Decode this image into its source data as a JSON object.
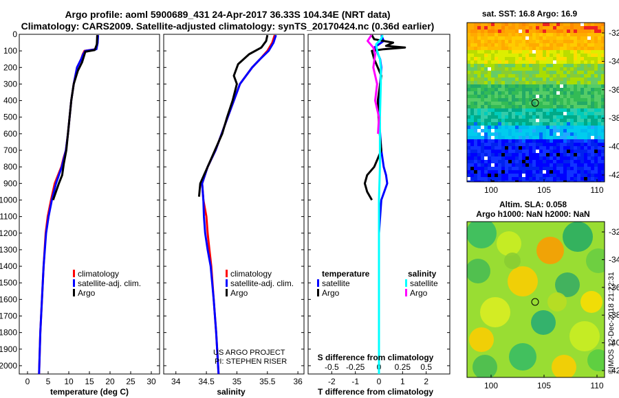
{
  "header": {
    "title_line1": "Argo profile: aoml 5900689_431 24-Apr-2017 36.33S 104.34E (NRT data)",
    "title_line2": "Climatology: CARS2009. Satellite-adjusted climatology: synTS_20170424.nc (0.36d earlier)"
  },
  "colors": {
    "climatology": "#ff0000",
    "satellite_adj": "#0000ff",
    "argo": "#000000",
    "s_satellite": "#00ffff",
    "s_argo": "#ff00ff"
  },
  "depth_axis": {
    "range": [
      0,
      2050
    ],
    "ticks": [
      "0",
      "100",
      "200",
      "300",
      "400",
      "500",
      "600",
      "700",
      "800",
      "900",
      "1000",
      "1100",
      "1200",
      "1300",
      "1400",
      "1500",
      "1600",
      "1700",
      "1800",
      "1900",
      "2000"
    ]
  },
  "chart_data": [
    {
      "type": "line",
      "id": "temperature",
      "xlabel": "temperature (deg C)",
      "xlim": [
        -2,
        32
      ],
      "xticks": [
        0,
        5,
        10,
        15,
        20,
        25,
        30
      ],
      "xtick_labels": [
        "0",
        "5",
        "10",
        "15",
        "20",
        "25",
        "30"
      ],
      "ylim": [
        0,
        2050
      ],
      "legend": [
        "climatology",
        "satellite-adj. clim.",
        "Argo"
      ],
      "series": [
        {
          "name": "climatology",
          "color": "#ff0000",
          "depth": [
            5,
            50,
            90,
            100,
            120,
            150,
            200,
            300,
            400,
            500,
            600,
            700,
            750,
            800,
            850,
            900,
            1000,
            1100,
            1200,
            1400,
            1600,
            1800,
            2050
          ],
          "values": [
            17,
            17,
            16.5,
            13.8,
            13.4,
            13,
            12,
            11.2,
            10.6,
            10.2,
            9.8,
            9.3,
            8.7,
            8.2,
            7.4,
            6.6,
            5.7,
            4.9,
            4.4,
            3.9,
            3.5,
            3.1,
            2.8
          ]
        },
        {
          "name": "satellite-adj. clim.",
          "color": "#0000ff",
          "depth": [
            5,
            50,
            90,
            100,
            120,
            150,
            200,
            300,
            400,
            500,
            600,
            700,
            750,
            800,
            850,
            900,
            1000,
            1100,
            1200,
            1400,
            1600,
            1800,
            2050
          ],
          "values": [
            17.1,
            17,
            16.7,
            14,
            13.5,
            13,
            12,
            11.2,
            10.6,
            10.2,
            9.8,
            9.3,
            8.8,
            8.3,
            7.6,
            6.9,
            5.9,
            5.1,
            4.5,
            3.9,
            3.5,
            3.1,
            2.8
          ]
        },
        {
          "name": "Argo",
          "color": "#000000",
          "depth": [
            5,
            60,
            95,
            105,
            130,
            170,
            220,
            300,
            400,
            500,
            600,
            700,
            780,
            850,
            900,
            1000
          ],
          "values": [
            16.9,
            16.8,
            16.3,
            14,
            13.7,
            13.2,
            12.2,
            11.2,
            10.6,
            10.2,
            9.8,
            9.4,
            8.8,
            8.4,
            7.6,
            6.2
          ]
        }
      ]
    },
    {
      "type": "line",
      "id": "salinity",
      "xlabel": "salinity",
      "xlim": [
        33.8,
        36.1
      ],
      "xticks": [
        34,
        34.5,
        35,
        35.5,
        36
      ],
      "xtick_labels": [
        "34",
        "34.5",
        "35",
        "35.5",
        "36"
      ],
      "ylim": [
        0,
        2050
      ],
      "legend": [
        "climatology",
        "satellite-adj. clim.",
        "Argo"
      ],
      "annotation": [
        "US ARGO PROJECT",
        "PI: STEPHEN RISER"
      ],
      "series": [
        {
          "name": "climatology",
          "color": "#ff0000",
          "depth": [
            5,
            50,
            100,
            150,
            200,
            300,
            400,
            500,
            600,
            700,
            800,
            900,
            1000,
            1100,
            1200,
            1300,
            1400,
            1600,
            1800,
            2050
          ],
          "values": [
            35.62,
            35.58,
            35.5,
            35.38,
            35.25,
            35.05,
            34.95,
            34.85,
            34.75,
            34.65,
            34.52,
            34.43,
            34.45,
            34.5,
            34.52,
            34.55,
            34.58,
            34.62,
            34.66,
            34.7
          ]
        },
        {
          "name": "satellite-adj. clim.",
          "color": "#0000ff",
          "depth": [
            5,
            50,
            100,
            150,
            200,
            300,
            400,
            500,
            600,
            700,
            800,
            900,
            1000,
            1100,
            1200,
            1300,
            1400,
            1600,
            1800,
            2050
          ],
          "values": [
            35.64,
            35.6,
            35.52,
            35.38,
            35.25,
            35.05,
            34.95,
            34.85,
            34.75,
            34.65,
            34.52,
            34.43,
            34.45,
            34.46,
            34.48,
            34.52,
            34.57,
            34.62,
            34.66,
            34.7
          ]
        },
        {
          "name": "Argo",
          "color": "#000000",
          "depth": [
            5,
            40,
            80,
            120,
            180,
            250,
            300,
            400,
            500,
            600,
            700,
            800,
            900,
            980
          ],
          "values": [
            35.5,
            35.48,
            35.4,
            35.2,
            35.02,
            34.95,
            35.0,
            34.93,
            34.84,
            34.76,
            34.64,
            34.52,
            34.4,
            34.38
          ]
        }
      ]
    },
    {
      "type": "line",
      "id": "difference",
      "xlabel": "T difference from climatology",
      "xlim": [
        -3,
        3
      ],
      "xticks": [
        -2,
        -1,
        0,
        1,
        2
      ],
      "xtick_labels": [
        "-2",
        "-1",
        "0",
        "1",
        "2"
      ],
      "top_axis_label": "S difference from climatology",
      "top_ticks": [
        -0.5,
        -0.25,
        0,
        0.25,
        0.5
      ],
      "top_tick_labels": [
        "-0.5",
        "-0.25",
        "0",
        "0.25",
        "0.5"
      ],
      "top_xlim": [
        -0.75,
        0.75
      ],
      "ylim": [
        0,
        2050
      ],
      "legend_temperature_title": "temperature",
      "legend_salinity_title": "salinity",
      "legend_temperature": [
        "satellite",
        "Argo"
      ],
      "legend_salinity": [
        "satellite",
        "Argo"
      ],
      "series": [
        {
          "name": "T satellite",
          "color": "#0000ff",
          "depth": [
            5,
            40,
            60,
            80,
            100,
            150,
            200,
            300,
            400,
            500,
            700,
            800,
            850,
            900,
            1000,
            1200,
            1500,
            2050
          ],
          "values": [
            0.1,
            0.2,
            0,
            -0.2,
            -0.1,
            0.05,
            0.1,
            0.05,
            0,
            0,
            0.1,
            0.2,
            0.3,
            0.35,
            0.1,
            0,
            0,
            0
          ]
        },
        {
          "name": "T Argo",
          "color": "#000000",
          "depth": [
            5,
            30,
            50,
            70,
            80,
            90,
            100,
            150,
            250,
            400,
            550,
            700,
            800,
            850,
            900,
            950,
            1000
          ],
          "values": [
            -0.3,
            -0.2,
            0.6,
            0.3,
            1.1,
            0.2,
            -0.3,
            -0.2,
            0.1,
            -0.05,
            0,
            0.1,
            -0.2,
            -0.5,
            -0.6,
            -0.5,
            -0.3
          ]
        },
        {
          "name": "S satellite",
          "color": "#00ffff",
          "depth": [
            5,
            30,
            60,
            100,
            150,
            200,
            300,
            500,
            800,
            1000,
            1200,
            1500,
            2050
          ],
          "values": [
            0.04,
            0.02,
            -0.03,
            -0.02,
            0.01,
            0.02,
            0.02,
            0.01,
            0.01,
            0,
            0,
            0,
            0
          ]
        },
        {
          "name": "S Argo",
          "color": "#ff00ff",
          "depth": [
            5,
            40,
            80,
            120,
            200,
            300,
            400,
            500,
            600
          ],
          "values": [
            -0.08,
            -0.12,
            -0.06,
            -0.04,
            -0.06,
            -0.02,
            -0.04,
            0,
            -0.01
          ]
        }
      ]
    }
  ],
  "sst_map": {
    "title": "sat.  SST: 16.8 Argo: 16.9",
    "yticks": [
      "-32",
      "-34",
      "-36",
      "-38",
      "-40",
      "-42"
    ],
    "xticks": [
      "100",
      "105",
      "110"
    ]
  },
  "sla_map": {
    "title_line1": "Altim. SLA: 0.058",
    "title_line2": "Argo h1000: NaN h2000: NaN",
    "yticks": [
      "-32",
      "-34",
      "-36",
      "-38",
      "-40",
      "-42"
    ],
    "xticks": [
      "100",
      "105",
      "110"
    ]
  },
  "credit": "©IMOS 12-Dec-2018 21:22:31"
}
